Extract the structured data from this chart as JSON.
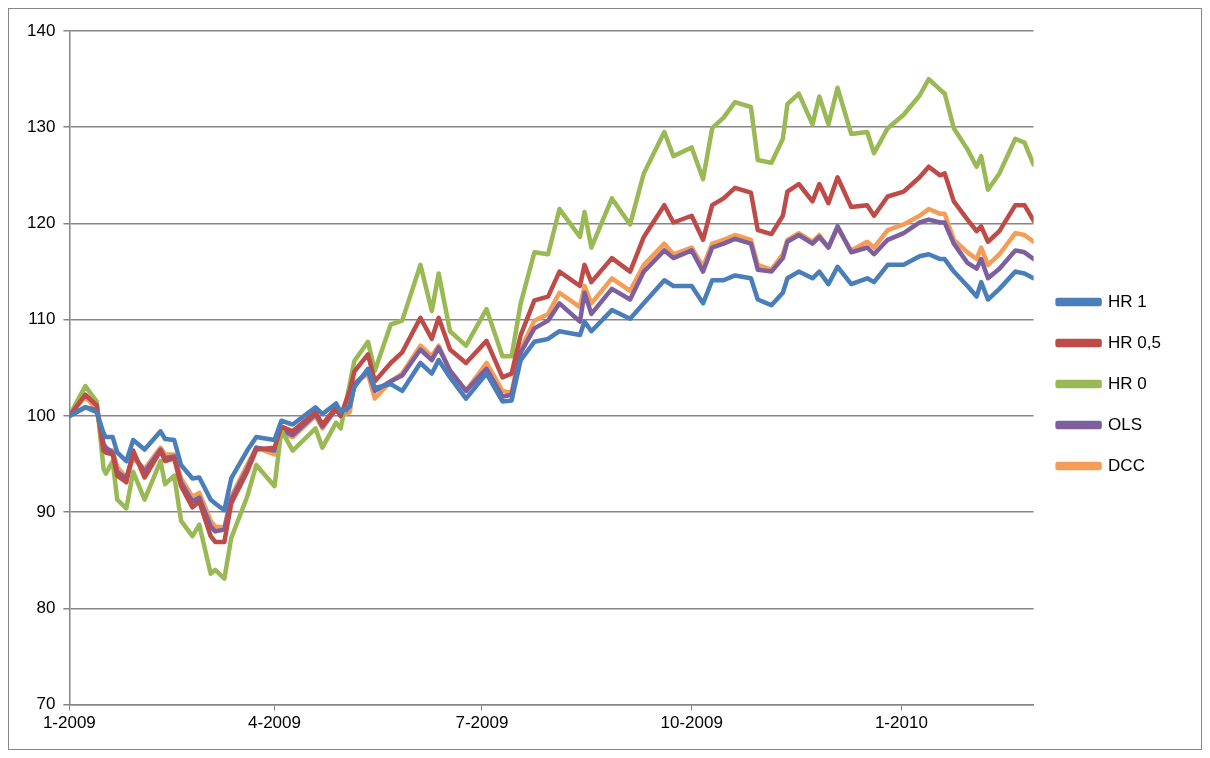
{
  "chart_data": {
    "type": "line",
    "x": [
      "2009-01-01",
      "2009-01-08",
      "2009-01-13",
      "2009-01-16",
      "2009-01-17",
      "2009-01-20",
      "2009-01-22",
      "2009-01-26",
      "2009-01-29",
      "2009-02-03",
      "2009-02-10",
      "2009-02-12",
      "2009-02-16",
      "2009-02-19",
      "2009-02-24",
      "2009-02-27",
      "2009-03-04",
      "2009-03-06",
      "2009-03-10",
      "2009-03-13",
      "2009-03-20",
      "2009-03-24",
      "2009-04-01",
      "2009-04-04",
      "2009-04-09",
      "2009-04-19",
      "2009-04-22",
      "2009-04-28",
      "2009-04-30",
      "2009-05-04",
      "2009-05-06",
      "2009-05-12",
      "2009-05-15",
      "2009-05-22",
      "2009-05-27",
      "2009-06-04",
      "2009-06-09",
      "2009-06-12",
      "2009-06-17",
      "2009-06-24",
      "2009-07-03",
      "2009-07-10",
      "2009-07-14",
      "2009-07-18",
      "2009-07-24",
      "2009-07-30",
      "2009-08-04",
      "2009-08-13",
      "2009-08-15",
      "2009-08-18",
      "2009-08-27",
      "2009-09-04",
      "2009-09-10",
      "2009-09-19",
      "2009-09-23",
      "2009-10-01",
      "2009-10-06",
      "2009-10-10",
      "2009-10-15",
      "2009-10-20",
      "2009-10-27",
      "2009-10-30",
      "2009-11-05",
      "2009-11-10",
      "2009-11-12",
      "2009-11-17",
      "2009-11-23",
      "2009-11-26",
      "2009-11-30",
      "2009-12-04",
      "2009-12-10",
      "2009-12-17",
      "2009-12-20",
      "2009-12-26",
      "2010-01-02",
      "2010-01-09",
      "2010-01-13",
      "2010-01-18",
      "2010-01-20",
      "2010-01-24",
      "2010-01-30",
      "2010-02-03",
      "2010-02-05",
      "2010-02-08",
      "2010-02-13",
      "2010-02-20",
      "2010-02-24",
      "2010-02-28"
    ],
    "series": [
      {
        "name": "HR 1",
        "color": "#4a7ebb",
        "values": [
          100,
          100.9,
          100.4,
          98.2,
          97.8,
          97.8,
          96.2,
          95.3,
          97.5,
          96.5,
          98.4,
          97.6,
          97.5,
          94.9,
          93.5,
          93.6,
          91.3,
          90.9,
          90.2,
          93.5,
          96.4,
          97.8,
          97.5,
          99.5,
          99.1,
          100.9,
          100.2,
          101.3,
          100.4,
          101,
          103,
          104.9,
          102.9,
          103.3,
          102.6,
          105.5,
          104.4,
          105.8,
          104,
          101.8,
          104.4,
          101.5,
          101.6,
          105.8,
          107.7,
          108,
          108.8,
          108.4,
          109.8,
          108.8,
          111,
          110.1,
          111.7,
          114.1,
          113.5,
          113.5,
          111.7,
          114.1,
          114.1,
          114.6,
          114.3,
          112.1,
          111.5,
          112.8,
          114.3,
          115,
          114.3,
          115,
          113.7,
          115.5,
          113.7,
          114.3,
          113.9,
          115.7,
          115.7,
          116.6,
          116.8,
          116.3,
          116.3,
          115,
          113.5,
          112.4,
          113.9,
          112.1,
          113.2,
          115,
          114.8,
          114.3
        ]
      },
      {
        "name": "HR 0,5",
        "color": "#be4b48",
        "values": [
          100,
          102.2,
          101.1,
          96.4,
          96.2,
          96,
          93.8,
          93.1,
          96.4,
          93.6,
          96.4,
          95.3,
          95.6,
          92.7,
          90.5,
          91.1,
          87.5,
          86.9,
          86.9,
          90.9,
          94.2,
          96.5,
          96.7,
          98.9,
          98.4,
          100.4,
          99.1,
          100.9,
          100,
          102.6,
          104.6,
          106.4,
          103.6,
          105.5,
          106.6,
          110.2,
          108,
          110.2,
          106.9,
          105.5,
          107.8,
          104,
          104.4,
          108.4,
          112,
          112.4,
          115,
          113.5,
          115.7,
          113.9,
          116.4,
          115,
          118.6,
          121.9,
          120.1,
          120.8,
          118.3,
          121.9,
          122.6,
          123.7,
          123.2,
          119.3,
          118.9,
          120.8,
          123.3,
          124.1,
          122.3,
          124.1,
          122.1,
          124.8,
          121.7,
          121.9,
          120.8,
          122.8,
          123.3,
          124.8,
          125.9,
          125,
          125.2,
          122.3,
          120.4,
          119.2,
          119.7,
          118.1,
          119.2,
          121.9,
          121.9,
          120.3
        ]
      },
      {
        "name": "HR 0",
        "color": "#98b954",
        "values": [
          100,
          103.1,
          101.5,
          94.5,
          94,
          95.3,
          91.3,
          90.4,
          94.2,
          91.3,
          95.3,
          92.9,
          93.8,
          89.1,
          87.5,
          88.7,
          83.6,
          84,
          83.1,
          87.3,
          91.6,
          94.9,
          92.7,
          98.5,
          96.4,
          98.7,
          96.7,
          99.3,
          98.7,
          103.3,
          105.7,
          107.7,
          104.7,
          109.5,
          109.9,
          115.7,
          110.9,
          114.8,
          108.8,
          107.3,
          111.1,
          106.2,
          106.2,
          111.7,
          117,
          116.8,
          121.5,
          118.6,
          121.2,
          117.5,
          122.6,
          119.9,
          125.2,
          129.5,
          127,
          127.9,
          124.6,
          129.9,
          131,
          132.6,
          132.1,
          126.6,
          126.3,
          128.8,
          132.4,
          133.5,
          130.3,
          133.2,
          130.3,
          134.1,
          129.3,
          129.5,
          127.3,
          129.9,
          131.3,
          133.3,
          135,
          133.9,
          133.5,
          129.9,
          127.7,
          125.9,
          127,
          123.5,
          125.2,
          128.8,
          128.4,
          126.1
        ]
      },
      {
        "name": "OLS",
        "color": "#7d5fa0",
        "values": [
          100,
          100.9,
          100.6,
          97.1,
          96.7,
          96.2,
          94.2,
          93.5,
          96,
          94.2,
          96.5,
          95.6,
          95.8,
          93.1,
          91.1,
          91.5,
          88.5,
          88,
          88.2,
          91.3,
          94.5,
          96.7,
          96.4,
          98.5,
          98,
          100.2,
          98.9,
          100.7,
          100,
          101,
          103.2,
          104.7,
          102.6,
          103.6,
          104.2,
          106.9,
          105.8,
          107.1,
          104.7,
          102.6,
          104.9,
          102,
          102.2,
          106.6,
          109.1,
          109.9,
          111.7,
          109.8,
          112.8,
          110.6,
          113.2,
          112.1,
          115,
          117.2,
          116.4,
          117.2,
          115,
          117.5,
          117.9,
          118.4,
          117.9,
          115.2,
          115,
          116.4,
          118.1,
          118.8,
          117.9,
          118.6,
          117.5,
          119.7,
          117,
          117.5,
          116.8,
          118.3,
          119,
          120.1,
          120.4,
          120.1,
          120.1,
          117.9,
          115.9,
          115.3,
          116.3,
          114.3,
          115.3,
          117.2,
          117,
          116.3
        ]
      },
      {
        "name": "DCC",
        "color": "#f59d56",
        "values": [
          100,
          102,
          100.7,
          96.7,
          96.5,
          96.4,
          94.7,
          93.6,
          95.6,
          94.5,
          96.7,
          96,
          96,
          93.5,
          91.6,
          92,
          89.1,
          88.5,
          88.4,
          91.6,
          94.9,
          96.7,
          96,
          98.2,
          97.8,
          100,
          98.7,
          100.7,
          100,
          100.4,
          103.4,
          104.4,
          101.8,
          103.6,
          104.4,
          107.3,
          106.2,
          107.3,
          104.7,
          102.6,
          105.5,
          102.6,
          102.4,
          106.9,
          109.9,
          110.6,
          112.8,
          111.3,
          113.5,
          111.7,
          114.3,
          113,
          115.7,
          117.9,
          116.8,
          117.5,
          115.5,
          117.9,
          118.3,
          118.8,
          118.3,
          115.7,
          115.2,
          116.8,
          118.3,
          119,
          118.1,
          118.8,
          117.5,
          119.5,
          117.2,
          118.1,
          117.5,
          119.3,
          119.9,
          120.8,
          121.5,
          121,
          121,
          118.3,
          117,
          116.3,
          117.5,
          115.7,
          116.8,
          119,
          118.8,
          118.1
        ]
      }
    ],
    "xlim": [
      "2009-01-01",
      "2010-02-28"
    ],
    "xticks": [
      {
        "value": "2009-01-01",
        "label": "1-2009"
      },
      {
        "value": "2009-04-01",
        "label": "4-2009"
      },
      {
        "value": "2009-07-01",
        "label": "7-2009"
      },
      {
        "value": "2009-10-01",
        "label": "10-2009"
      },
      {
        "value": "2010-01-01",
        "label": "1-2010"
      }
    ],
    "ylim": [
      70,
      140
    ],
    "yticks": [
      70,
      80,
      90,
      100,
      110,
      120,
      130,
      140
    ],
    "grid": "y",
    "legend": "right",
    "marker": "none",
    "line_style": "solid"
  }
}
